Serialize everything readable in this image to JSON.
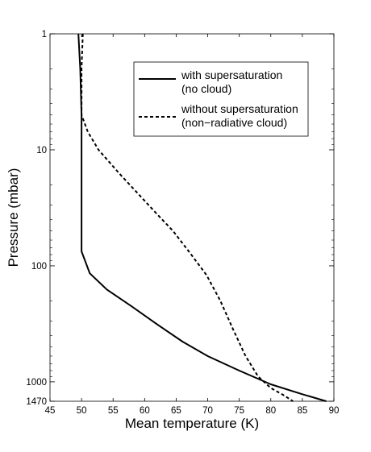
{
  "chart_data": {
    "type": "line",
    "title": "",
    "xlabel": "Mean temperature (K)",
    "ylabel": "Pressure (mbar)",
    "xlim": [
      45,
      90
    ],
    "ylim": [
      1,
      1470
    ],
    "y_scale": "log",
    "y_inverted": true,
    "grid": false,
    "legend_placement": "top-right",
    "x_ticks": [
      "45",
      "50",
      "55",
      "60",
      "65",
      "70",
      "75",
      "80",
      "85",
      "90"
    ],
    "y_ticks": [
      {
        "value": 1,
        "label": "1"
      },
      {
        "value": 10,
        "label": "10"
      },
      {
        "value": 100,
        "label": "100"
      },
      {
        "value": 1000,
        "label": "1000"
      },
      {
        "value": 1470,
        "label": "1470"
      }
    ],
    "series": [
      {
        "name": "with supersaturation",
        "name_line2": "(no cloud)",
        "line_style": "solid",
        "color": "#000000",
        "points": [
          [
            49.5,
            1
          ],
          [
            49.8,
            2
          ],
          [
            50.0,
            5
          ],
          [
            50.0,
            10
          ],
          [
            50.0,
            30
          ],
          [
            50.0,
            75
          ],
          [
            51.3,
            116
          ],
          [
            54.0,
            160
          ],
          [
            58.0,
            225
          ],
          [
            62.0,
            320
          ],
          [
            66.0,
            450
          ],
          [
            70.0,
            600
          ],
          [
            75.0,
            800
          ],
          [
            80.0,
            1050
          ],
          [
            85.0,
            1280
          ],
          [
            88.8,
            1470
          ]
        ]
      },
      {
        "name": "without supersaturation",
        "name_line2": "(non−radiative cloud)",
        "line_style": "dashed",
        "color": "#000000",
        "points": [
          [
            50.2,
            1
          ],
          [
            50.0,
            2
          ],
          [
            50.0,
            3
          ],
          [
            50.0,
            5
          ],
          [
            51.0,
            7
          ],
          [
            52.7,
            10
          ],
          [
            56.0,
            16
          ],
          [
            59.3,
            25
          ],
          [
            62.0,
            36
          ],
          [
            64.5,
            50
          ],
          [
            67.0,
            75
          ],
          [
            69.8,
            120
          ],
          [
            72.0,
            200
          ],
          [
            74.0,
            350
          ],
          [
            76.0,
            600
          ],
          [
            78.0,
            900
          ],
          [
            80.0,
            1130
          ],
          [
            82.0,
            1300
          ],
          [
            83.5,
            1470
          ]
        ]
      }
    ]
  }
}
